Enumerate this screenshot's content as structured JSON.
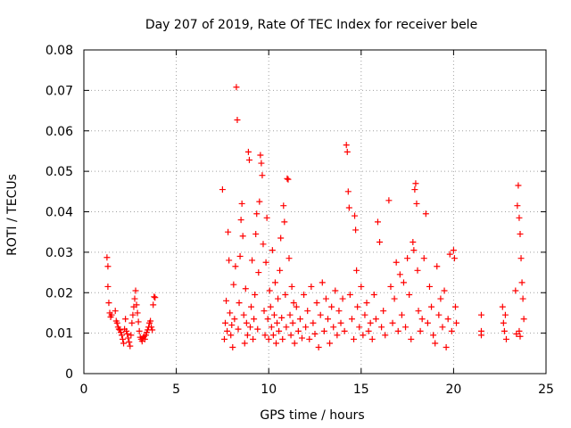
{
  "chart_data": {
    "type": "scatter",
    "title": "Day 207 of 2019, Rate Of TEC Index for receiver bele",
    "xlabel": "GPS time / hours",
    "ylabel": "ROTI / TECUs",
    "xlim": [
      0,
      25
    ],
    "ylim": [
      0,
      0.08
    ],
    "x_ticks": [
      "0",
      "5",
      "10",
      "15",
      "20",
      "25"
    ],
    "y_ticks": [
      "0",
      "0.01",
      "0.02",
      "0.03",
      "0.04",
      "0.05",
      "0.06",
      "0.07",
      "0.08"
    ],
    "grid": true,
    "marker": "+",
    "color": "#ff0000",
    "series": [
      {
        "points": [
          [
            1.25,
            0.0287
          ],
          [
            1.3,
            0.0265
          ],
          [
            1.3,
            0.0215
          ],
          [
            1.35,
            0.0175
          ],
          [
            1.4,
            0.015
          ],
          [
            1.45,
            0.014
          ],
          [
            1.5,
            0.0145
          ],
          [
            1.7,
            0.0155
          ],
          [
            1.75,
            0.013
          ],
          [
            1.8,
            0.0125
          ],
          [
            1.85,
            0.0115
          ],
          [
            1.9,
            0.011
          ],
          [
            1.95,
            0.0108
          ],
          [
            2.0,
            0.0102
          ],
          [
            2.05,
            0.0095
          ],
          [
            2.1,
            0.0085
          ],
          [
            2.15,
            0.0075
          ],
          [
            2.2,
            0.011
          ],
          [
            2.25,
            0.0135
          ],
          [
            2.3,
            0.0105
          ],
          [
            2.35,
            0.0098
          ],
          [
            2.4,
            0.0088
          ],
          [
            2.45,
            0.0078
          ],
          [
            2.5,
            0.0068
          ],
          [
            2.55,
            0.0095
          ],
          [
            2.6,
            0.0125
          ],
          [
            2.65,
            0.0145
          ],
          [
            2.7,
            0.0165
          ],
          [
            2.75,
            0.0185
          ],
          [
            2.8,
            0.0205
          ],
          [
            2.85,
            0.017
          ],
          [
            2.9,
            0.015
          ],
          [
            2.95,
            0.0128
          ],
          [
            3.0,
            0.0105
          ],
          [
            3.05,
            0.009
          ],
          [
            3.1,
            0.0085
          ],
          [
            3.15,
            0.008
          ],
          [
            3.2,
            0.0088
          ],
          [
            3.25,
            0.0092
          ],
          [
            3.3,
            0.0085
          ],
          [
            3.35,
            0.0095
          ],
          [
            3.4,
            0.0102
          ],
          [
            3.45,
            0.0108
          ],
          [
            3.5,
            0.0115
          ],
          [
            3.55,
            0.0125
          ],
          [
            3.6,
            0.013
          ],
          [
            3.65,
            0.0115
          ],
          [
            3.7,
            0.0108
          ],
          [
            3.75,
            0.017
          ],
          [
            3.8,
            0.019
          ],
          [
            3.85,
            0.0188
          ],
          [
            7.5,
            0.0455
          ],
          [
            7.6,
            0.0085
          ],
          [
            7.65,
            0.0125
          ],
          [
            7.7,
            0.018
          ],
          [
            7.75,
            0.0105
          ],
          [
            7.8,
            0.035
          ],
          [
            7.85,
            0.028
          ],
          [
            7.9,
            0.015
          ],
          [
            7.95,
            0.0095
          ],
          [
            8.0,
            0.012
          ],
          [
            8.05,
            0.0065
          ],
          [
            8.1,
            0.022
          ],
          [
            8.15,
            0.0135
          ],
          [
            8.2,
            0.0265
          ],
          [
            8.25,
            0.0708
          ],
          [
            8.3,
            0.0627
          ],
          [
            8.35,
            0.011
          ],
          [
            8.4,
            0.0175
          ],
          [
            8.45,
            0.029
          ],
          [
            8.5,
            0.038
          ],
          [
            8.55,
            0.042
          ],
          [
            8.6,
            0.034
          ],
          [
            8.65,
            0.0145
          ],
          [
            8.7,
            0.0075
          ],
          [
            8.75,
            0.021
          ],
          [
            8.8,
            0.0125
          ],
          [
            8.85,
            0.0095
          ],
          [
            8.9,
            0.0548
          ],
          [
            8.95,
            0.0528
          ],
          [
            9.0,
            0.0115
          ],
          [
            9.05,
            0.0165
          ],
          [
            9.1,
            0.028
          ],
          [
            9.15,
            0.0085
          ],
          [
            9.2,
            0.0135
          ],
          [
            9.25,
            0.0195
          ],
          [
            9.3,
            0.0345
          ],
          [
            9.35,
            0.0395
          ],
          [
            9.4,
            0.011
          ],
          [
            9.45,
            0.025
          ],
          [
            9.5,
            0.0425
          ],
          [
            9.55,
            0.054
          ],
          [
            9.6,
            0.052
          ],
          [
            9.65,
            0.049
          ],
          [
            9.7,
            0.032
          ],
          [
            9.75,
            0.0155
          ],
          [
            9.8,
            0.0095
          ],
          [
            9.85,
            0.0275
          ],
          [
            9.9,
            0.0385
          ],
          [
            9.95,
            0.0135
          ],
          [
            10.0,
            0.0085
          ],
          [
            10.05,
            0.0205
          ],
          [
            10.1,
            0.0165
          ],
          [
            10.15,
            0.0115
          ],
          [
            10.2,
            0.0305
          ],
          [
            10.25,
            0.0095
          ],
          [
            10.3,
            0.0145
          ],
          [
            10.35,
            0.0225
          ],
          [
            10.4,
            0.0075
          ],
          [
            10.45,
            0.0125
          ],
          [
            10.5,
            0.0185
          ],
          [
            10.55,
            0.0105
          ],
          [
            10.6,
            0.0255
          ],
          [
            10.65,
            0.0335
          ],
          [
            10.7,
            0.0138
          ],
          [
            10.75,
            0.0085
          ],
          [
            10.8,
            0.0415
          ],
          [
            10.85,
            0.0375
          ],
          [
            10.9,
            0.0195
          ],
          [
            10.95,
            0.0115
          ],
          [
            11.0,
            0.0482
          ],
          [
            11.05,
            0.048
          ],
          [
            11.1,
            0.0285
          ],
          [
            11.15,
            0.0145
          ],
          [
            11.2,
            0.0095
          ],
          [
            11.25,
            0.0215
          ],
          [
            11.3,
            0.0125
          ],
          [
            11.35,
            0.0175
          ],
          [
            11.4,
            0.0075
          ],
          [
            11.5,
            0.0165
          ],
          [
            11.6,
            0.0105
          ],
          [
            11.7,
            0.0135
          ],
          [
            11.8,
            0.0088
          ],
          [
            11.9,
            0.0195
          ],
          [
            12.0,
            0.0115
          ],
          [
            12.1,
            0.0155
          ],
          [
            12.2,
            0.0085
          ],
          [
            12.3,
            0.0215
          ],
          [
            12.4,
            0.0125
          ],
          [
            12.5,
            0.0098
          ],
          [
            12.6,
            0.0175
          ],
          [
            12.7,
            0.0065
          ],
          [
            12.8,
            0.0145
          ],
          [
            12.9,
            0.0225
          ],
          [
            13.0,
            0.0105
          ],
          [
            13.1,
            0.0185
          ],
          [
            13.2,
            0.0135
          ],
          [
            13.3,
            0.0075
          ],
          [
            13.4,
            0.0165
          ],
          [
            13.5,
            0.0115
          ],
          [
            13.6,
            0.0205
          ],
          [
            13.7,
            0.0095
          ],
          [
            13.8,
            0.0155
          ],
          [
            13.9,
            0.0125
          ],
          [
            14.0,
            0.0185
          ],
          [
            14.1,
            0.0105
          ],
          [
            14.2,
            0.0565
          ],
          [
            14.25,
            0.0548
          ],
          [
            14.3,
            0.045
          ],
          [
            14.35,
            0.041
          ],
          [
            14.4,
            0.0195
          ],
          [
            14.5,
            0.0135
          ],
          [
            14.6,
            0.0085
          ],
          [
            14.65,
            0.039
          ],
          [
            14.7,
            0.0355
          ],
          [
            14.75,
            0.0255
          ],
          [
            14.8,
            0.0165
          ],
          [
            14.9,
            0.0115
          ],
          [
            15.0,
            0.0215
          ],
          [
            15.1,
            0.0095
          ],
          [
            15.2,
            0.0145
          ],
          [
            15.3,
            0.0175
          ],
          [
            15.4,
            0.0105
          ],
          [
            15.5,
            0.0125
          ],
          [
            15.6,
            0.0085
          ],
          [
            15.7,
            0.0195
          ],
          [
            15.8,
            0.0135
          ],
          [
            15.9,
            0.0375
          ],
          [
            16.0,
            0.0325
          ],
          [
            16.1,
            0.0115
          ],
          [
            16.2,
            0.0155
          ],
          [
            16.3,
            0.0095
          ],
          [
            16.5,
            0.0428
          ],
          [
            16.6,
            0.0215
          ],
          [
            16.7,
            0.0125
          ],
          [
            16.8,
            0.0185
          ],
          [
            16.9,
            0.0275
          ],
          [
            17.0,
            0.0105
          ],
          [
            17.1,
            0.0245
          ],
          [
            17.2,
            0.0145
          ],
          [
            17.3,
            0.0225
          ],
          [
            17.4,
            0.0115
          ],
          [
            17.5,
            0.0285
          ],
          [
            17.6,
            0.0195
          ],
          [
            17.7,
            0.0085
          ],
          [
            17.8,
            0.0325
          ],
          [
            17.85,
            0.0305
          ],
          [
            17.9,
            0.0455
          ],
          [
            17.95,
            0.047
          ],
          [
            18.0,
            0.042
          ],
          [
            18.05,
            0.0255
          ],
          [
            18.1,
            0.0155
          ],
          [
            18.2,
            0.0105
          ],
          [
            18.3,
            0.0135
          ],
          [
            18.4,
            0.0285
          ],
          [
            18.5,
            0.0395
          ],
          [
            18.6,
            0.0125
          ],
          [
            18.7,
            0.0215
          ],
          [
            18.8,
            0.0165
          ],
          [
            18.9,
            0.0095
          ],
          [
            19.0,
            0.0075
          ],
          [
            19.1,
            0.0265
          ],
          [
            19.2,
            0.0145
          ],
          [
            19.3,
            0.0185
          ],
          [
            19.4,
            0.0115
          ],
          [
            19.5,
            0.0205
          ],
          [
            19.6,
            0.0065
          ],
          [
            19.7,
            0.0135
          ],
          [
            19.8,
            0.0295
          ],
          [
            19.9,
            0.0105
          ],
          [
            20.0,
            0.0305
          ],
          [
            20.05,
            0.0285
          ],
          [
            20.1,
            0.0165
          ],
          [
            20.15,
            0.0125
          ],
          [
            21.5,
            0.0145
          ],
          [
            21.5,
            0.0095
          ],
          [
            21.5,
            0.0105
          ],
          [
            22.65,
            0.0165
          ],
          [
            22.7,
            0.0125
          ],
          [
            22.75,
            0.0105
          ],
          [
            22.8,
            0.0145
          ],
          [
            22.85,
            0.0085
          ],
          [
            23.35,
            0.0205
          ],
          [
            23.4,
            0.0098
          ],
          [
            23.45,
            0.0415
          ],
          [
            23.5,
            0.0465
          ],
          [
            23.55,
            0.0385
          ],
          [
            23.6,
            0.0345
          ],
          [
            23.65,
            0.0285
          ],
          [
            23.7,
            0.0225
          ],
          [
            23.75,
            0.0185
          ],
          [
            23.8,
            0.0135
          ],
          [
            23.55,
            0.0105
          ],
          [
            23.6,
            0.0092
          ]
        ]
      }
    ]
  }
}
